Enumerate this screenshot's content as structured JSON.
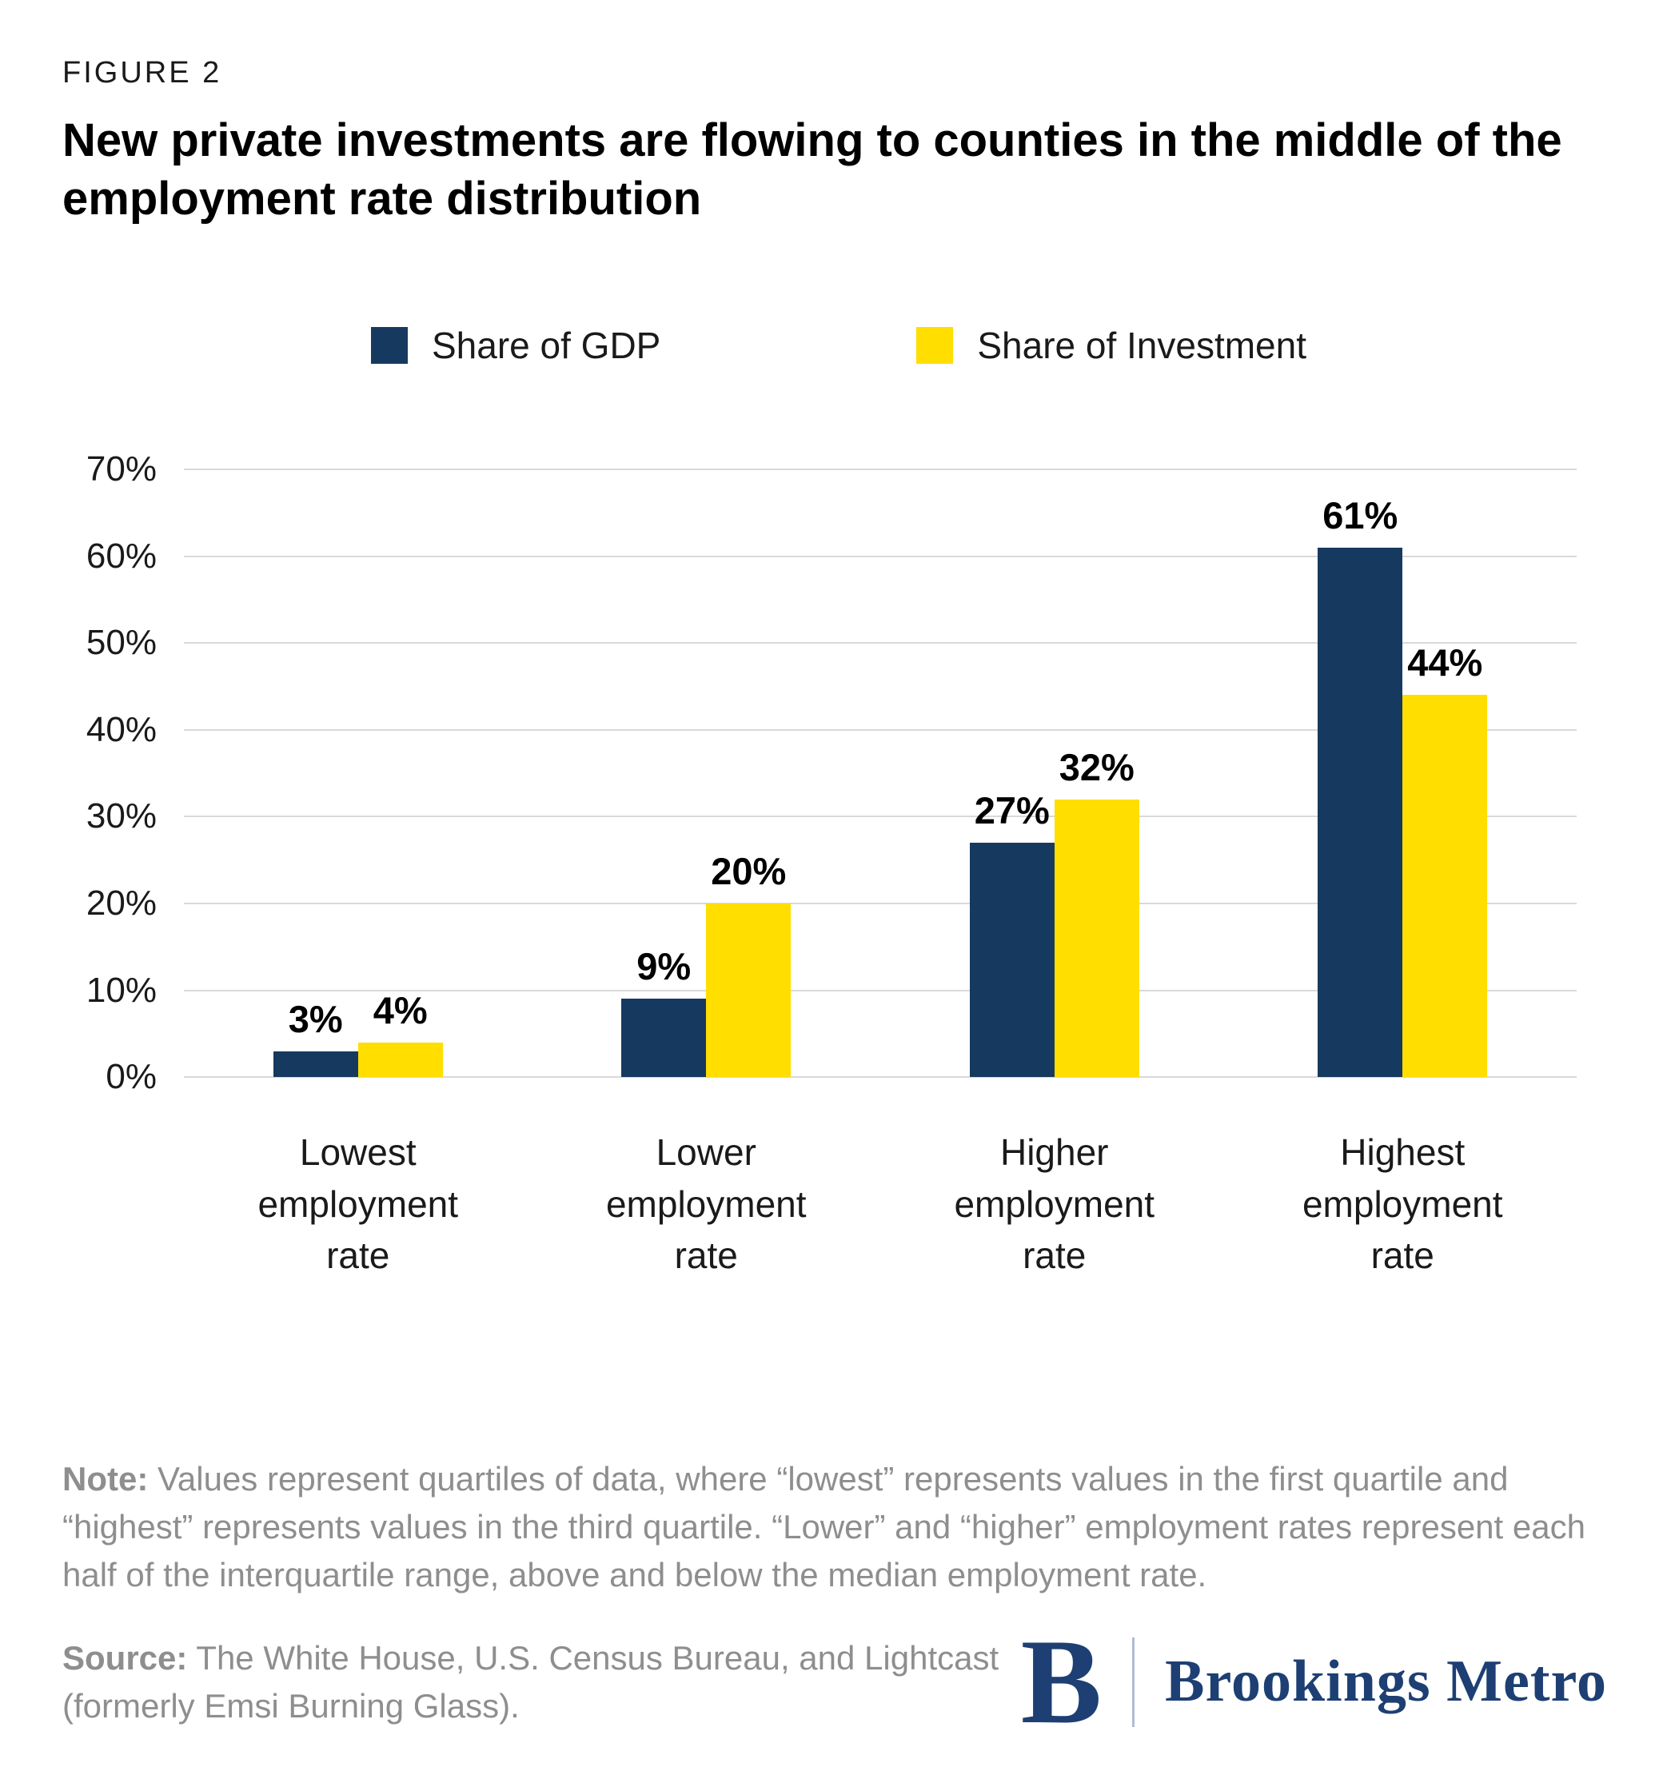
{
  "figure_label": "FIGURE 2",
  "title": "New private investments are flowing to counties in the middle of the employment rate distribution",
  "legend": [
    {
      "label": "Share of GDP",
      "color": "#16395F"
    },
    {
      "label": "Share of Investment",
      "color": "#FFDE00"
    }
  ],
  "chart_data": {
    "type": "bar",
    "categories": [
      "Lowest employment rate",
      "Lower employment rate",
      "Higher employment rate",
      "Highest employment rate"
    ],
    "series": [
      {
        "name": "Share of GDP",
        "color": "#16395F",
        "values": [
          3,
          9,
          27,
          61
        ]
      },
      {
        "name": "Share of Investment",
        "color": "#FFDE00",
        "values": [
          4,
          20,
          32,
          44
        ]
      }
    ],
    "value_suffix": "%",
    "ylim": [
      0,
      70
    ],
    "ytick_step": 10,
    "yticks": [
      "0%",
      "10%",
      "20%",
      "30%",
      "40%",
      "50%",
      "60%",
      "70%"
    ],
    "grid": true,
    "grid_color": "#d9d9d9",
    "legend_position": "top"
  },
  "note": {
    "label": "Note:",
    "text": " Values represent quartiles of data, where “lowest” represents values in the first quartile and “highest” represents values in the third quartile. “Lower” and “higher” employment rates represent each half of the interquartile range, above and below the median employment rate."
  },
  "source": {
    "label": "Source:",
    "text": " The White House, U.S. Census Bureau, and Lightcast (formerly Emsi Burning Glass)."
  },
  "logo": {
    "monogram": "B",
    "name": "Brookings Metro"
  }
}
